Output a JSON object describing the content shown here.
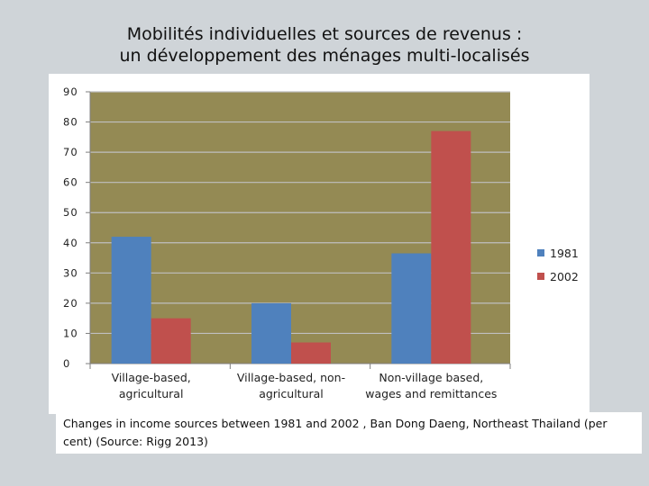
{
  "slide": {
    "title_line1": "Mobilités individuelles et sources de revenus :",
    "title_line2": "un développement des ménages multi-localisés"
  },
  "caption": "Changes in income sources between 1981 and 2002 , Ban Dong Daeng, Northeast Thailand (per cent) (Source: Rigg 2013)",
  "chart_data": {
    "type": "bar",
    "categories": [
      [
        "Village-based,",
        "agricultural"
      ],
      [
        "Village-based, non-",
        "agricultural"
      ],
      [
        "Non-village based,",
        "wages and remittances"
      ]
    ],
    "series": [
      {
        "name": "1981",
        "values": [
          42,
          20,
          36.5
        ],
        "color": "#4f81bd"
      },
      {
        "name": "2002",
        "values": [
          15,
          7,
          77
        ],
        "color": "#c0504d"
      }
    ],
    "y_ticks": [
      "0",
      "10",
      "20",
      "30",
      "40",
      "50",
      "60",
      "70",
      "80",
      "90"
    ],
    "ylim": [
      0,
      90
    ],
    "grid": true,
    "plot_background": "#948a54",
    "gridline_color": "#bfbfbf",
    "legend_position": "right"
  }
}
